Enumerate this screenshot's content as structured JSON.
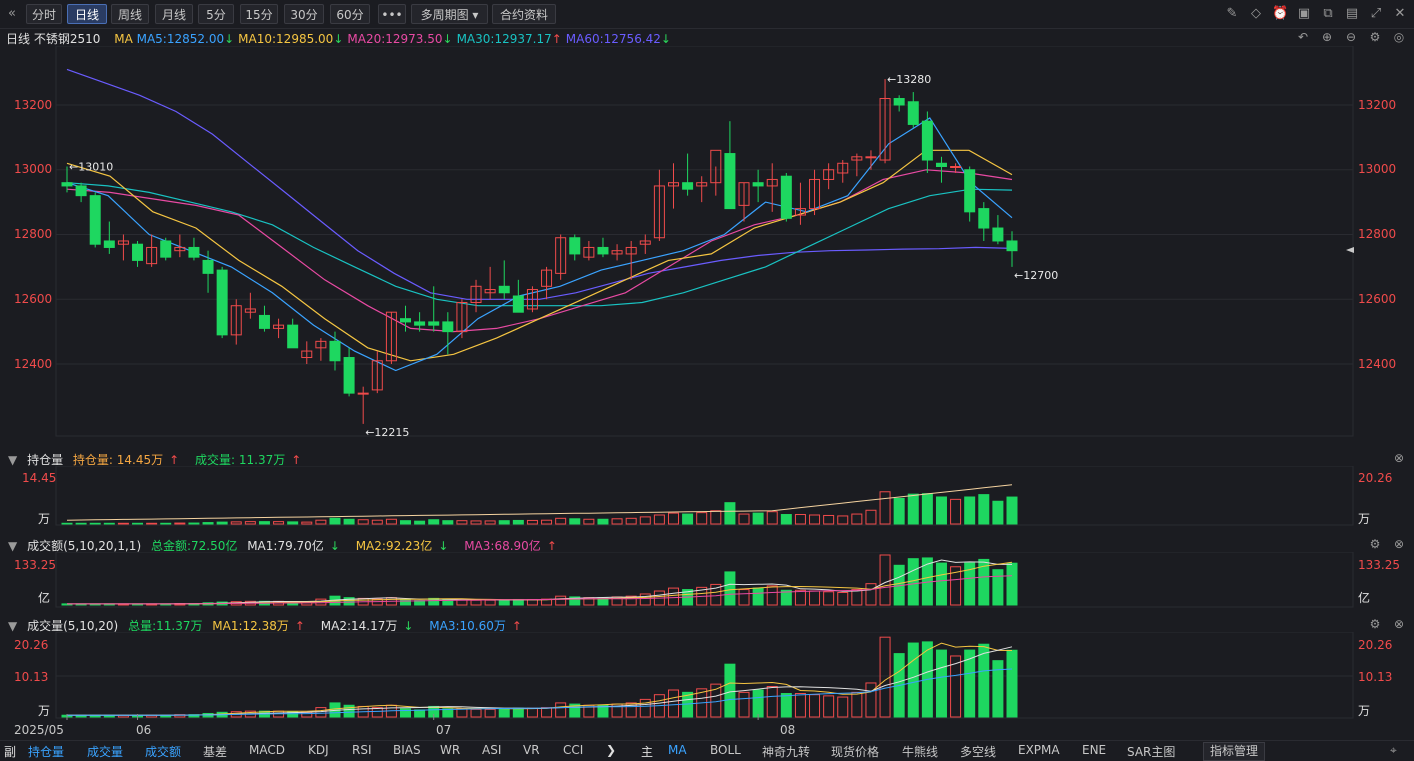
{
  "toolbar": {
    "collapse_icon": "double-chevron-left",
    "periods": [
      "分时",
      "日线",
      "周线",
      "月线",
      "5分",
      "15分",
      "30分",
      "60分"
    ],
    "active_period": "日线",
    "more_label": "•••",
    "multi_period_label": "多周期图",
    "contract_info_label": "合约资料",
    "right_icons": [
      "draw-icon",
      "eraser-icon",
      "alert-icon",
      "camera-icon",
      "layout-icon",
      "window-icon",
      "expand-icon",
      "close-icon"
    ]
  },
  "main_chart": {
    "period_label": "日线",
    "instrument": "不锈钢2510",
    "ma_label": "MA",
    "ma": [
      {
        "label": "MA5:12852.00",
        "dir": "down",
        "color": "#3aa3ff"
      },
      {
        "label": "MA10:12985.00",
        "dir": "down",
        "color": "#f5c542"
      },
      {
        "label": "MA20:12973.50",
        "dir": "down",
        "color": "#e84aa3"
      },
      {
        "label": "MA30:12937.17",
        "dir": "up",
        "color": "#19c2c2"
      },
      {
        "label": "MA60:12756.42",
        "dir": "down",
        "color": "#6a5cff"
      }
    ],
    "right_icons": [
      "undo-icon",
      "zoom-in-icon",
      "zoom-out-icon",
      "settings-icon"
    ],
    "y_ticks": [
      "13200",
      "13000",
      "12800",
      "12600",
      "12400"
    ],
    "annotations": {
      "high": "13280",
      "start": "13010",
      "low": "12215",
      "last": "12700"
    }
  },
  "oi_panel": {
    "title": "持仓量",
    "oi_label": "持仓量: 14.45万",
    "vol_label": "成交量: 11.37万",
    "left_top": "14.45",
    "left_unit": "万",
    "right_top": "20.26",
    "right_unit": "万"
  },
  "amount_panel": {
    "title": "成交额(5,10,20,1,1)",
    "total_label": "总金额:72.50亿",
    "ma1_label": "MA1:79.70亿",
    "ma2_label": "MA2:92.23亿",
    "ma3_label": "MA3:68.90亿",
    "left_top": "133.25",
    "left_unit": "亿",
    "right_top": "133.25",
    "right_unit": "亿"
  },
  "volume_panel": {
    "title": "成交量(5,10,20)",
    "total_label": "总量:11.37万",
    "ma1_label": "MA1:12.38万",
    "ma2_label": "MA2:14.17万",
    "ma3_label": "MA3:10.60万",
    "left_top": "20.26",
    "left_mid": "10.13",
    "left_unit": "万",
    "right_top": "20.26",
    "right_mid": "10.13",
    "right_unit": "万"
  },
  "x_axis": {
    "labels": [
      "2025/05",
      "06",
      "07",
      "08"
    ]
  },
  "bottom_tabs": {
    "sub_label": "副",
    "sub_tabs": [
      "持仓量",
      "成交量",
      "成交额",
      "基差",
      "MACD",
      "KDJ",
      "RSI",
      "BIAS",
      "WR",
      "ASI",
      "VR",
      "CCI"
    ],
    "main_label": "主",
    "main_tabs": [
      "MA",
      "BOLL",
      "神奇九转",
      "现货价格",
      "牛熊线",
      "多空线",
      "EXPMA",
      "ENE",
      "SAR主图"
    ],
    "indicator_manage": "指标管理"
  },
  "colors": {
    "up": "#f04b4b",
    "down": "#1ed760",
    "bg": "#1b1c21",
    "grid": "#2a2b31"
  }
}
